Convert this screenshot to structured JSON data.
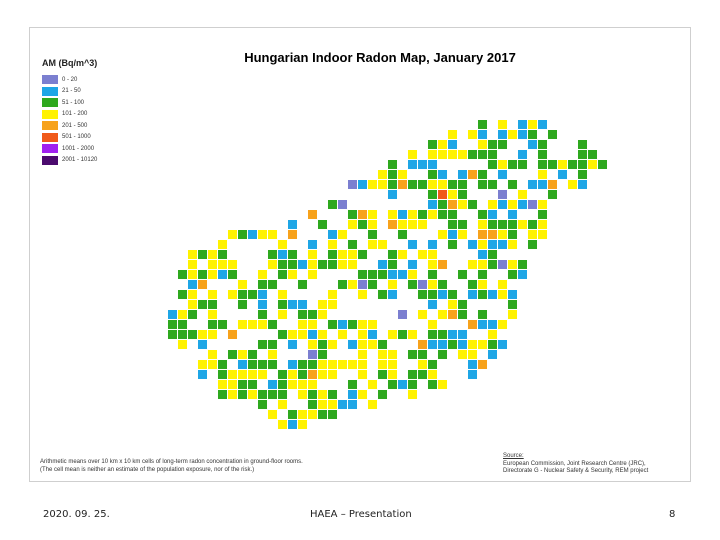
{
  "map": {
    "title": "Hungarian Indoor Radon Map, January 2017",
    "legend": {
      "title": "AM (Bq/m^3)",
      "items": [
        {
          "label": "0 - 20",
          "color": "#7b7fd0"
        },
        {
          "label": "21 - 50",
          "color": "#1ea6e6"
        },
        {
          "label": "51 - 100",
          "color": "#2ea81e"
        },
        {
          "label": "101 - 200",
          "color": "#fff200"
        },
        {
          "label": "201 - 500",
          "color": "#f7a21b"
        },
        {
          "label": "501 - 1000",
          "color": "#f05a1a"
        },
        {
          "label": "1001 - 2000",
          "color": "#a020f0"
        },
        {
          "label": "2001 - 10120",
          "color": "#4b0a6e"
        }
      ]
    },
    "note_line1": "Arithmetic means over 10 km x 10 km cells of long-term radon concentration in ground-floor rooms.",
    "note_line2": "(The cell mean is neither an estimate of the population exposure, nor of the risk.)",
    "source_head": "Source:",
    "source_line1": "European Commission, Joint Research Centre (JRC),",
    "source_line2": "Directorate G - Nuclear Safety & Security, REM project"
  },
  "footer": {
    "date": "2020. 09. 25.",
    "center": "HAEA – Presentation",
    "page": "8"
  }
}
